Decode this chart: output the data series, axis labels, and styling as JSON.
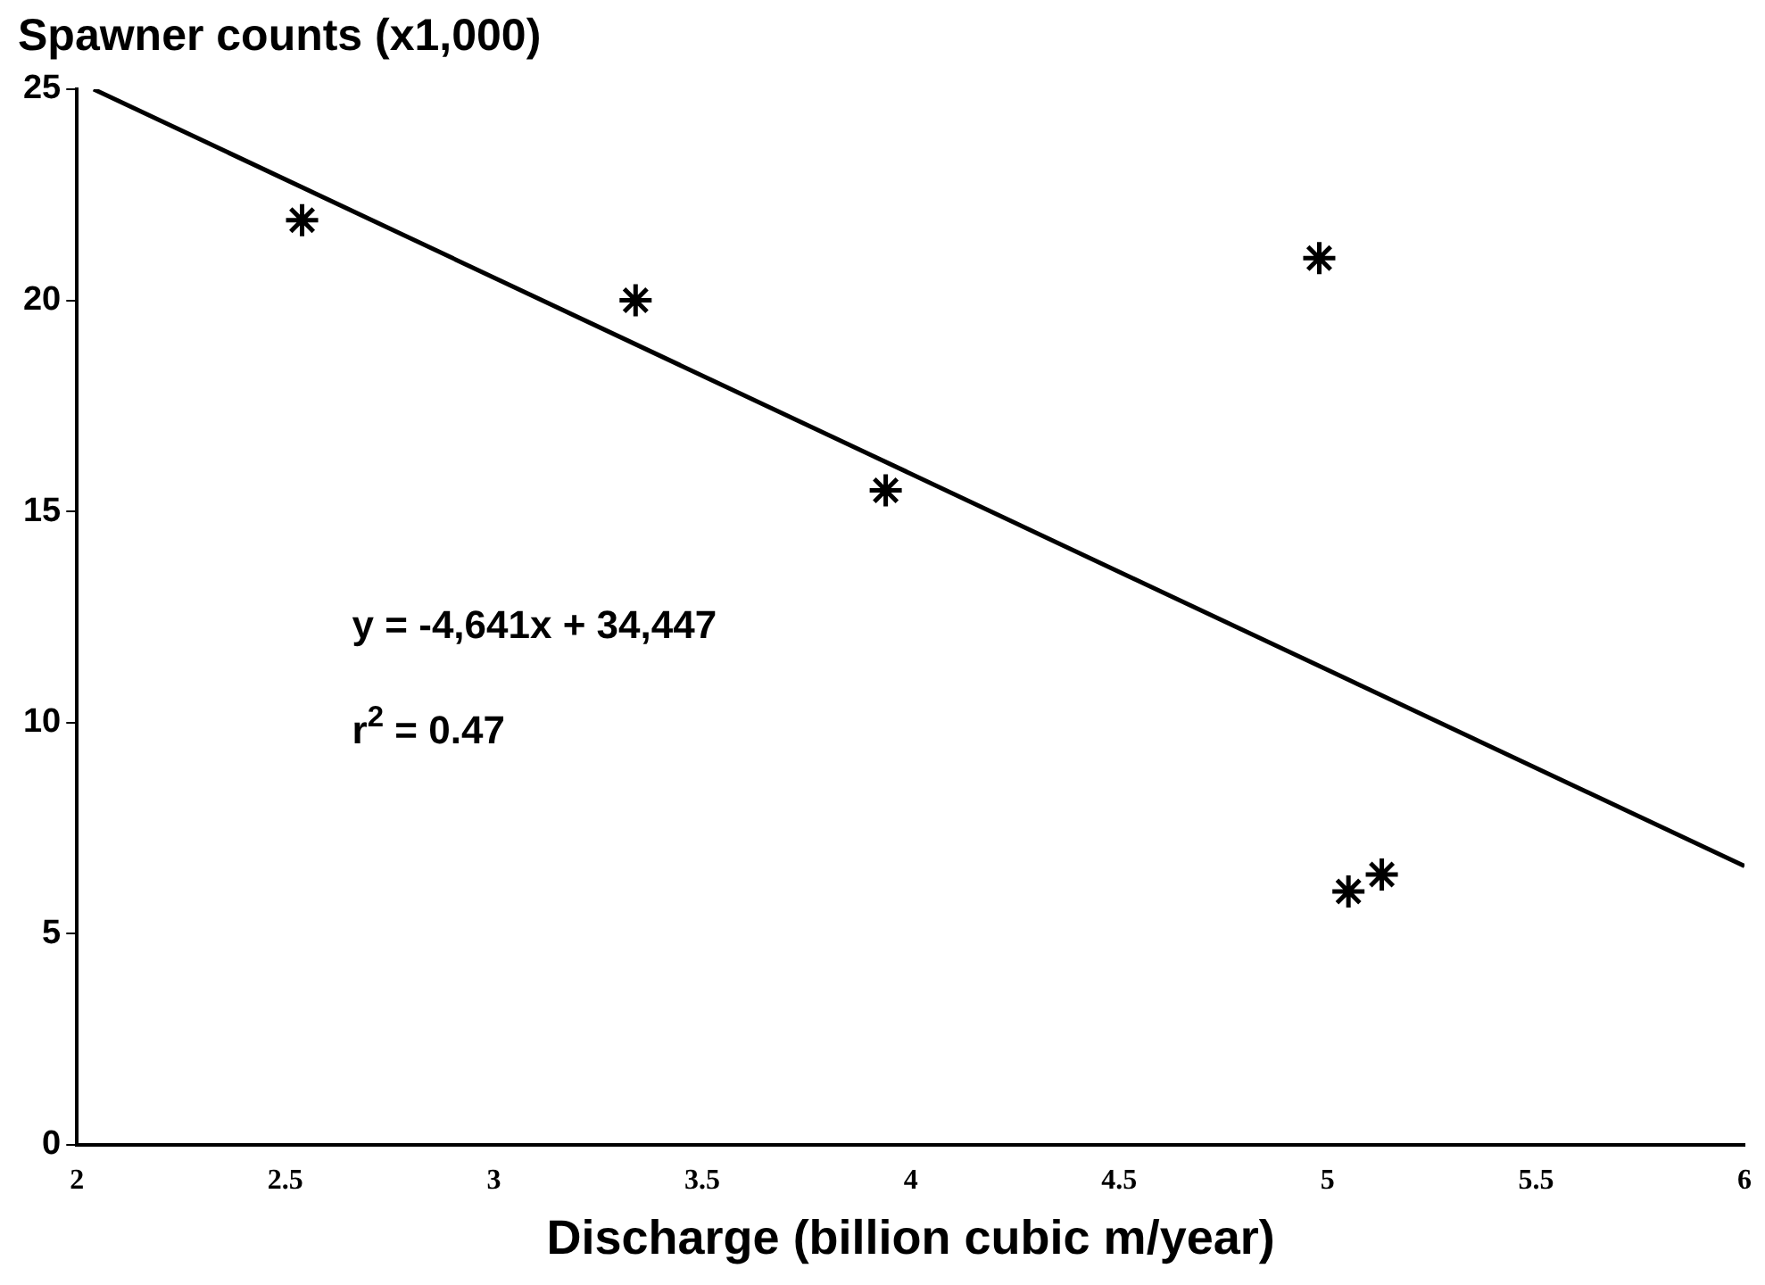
{
  "chart_data": {
    "type": "scatter",
    "title": "Spawner counts (x1,000)",
    "xlabel": "Discharge (billion cubic m/year)",
    "series": [
      {
        "color": "#000000",
        "x": [
          2.54,
          3.34,
          3.94,
          4.98,
          5.05,
          5.13
        ],
        "values": [
          21.9,
          20.0,
          15.5,
          21.0,
          6.0,
          6.4
        ],
        "marker": "cross"
      },
      {
        "type": "line",
        "color": "#000000",
        "x": [
          2.04,
          6
        ],
        "values": [
          25,
          6.6
        ],
        "marker": "none",
        "line_style": "solid"
      }
    ],
    "xlim": [
      2,
      6
    ],
    "xticks": [
      2,
      2.5,
      3,
      3.5,
      4,
      4.5,
      5,
      5.5,
      6
    ],
    "ylim": [
      0,
      25
    ],
    "yticks": [
      0,
      5,
      10,
      15,
      20,
      25
    ],
    "annotations": [
      "y = -4,641x + 34,447",
      "r$^{2}$ = 0.47"
    ],
    "grid": false,
    "legend": false
  }
}
